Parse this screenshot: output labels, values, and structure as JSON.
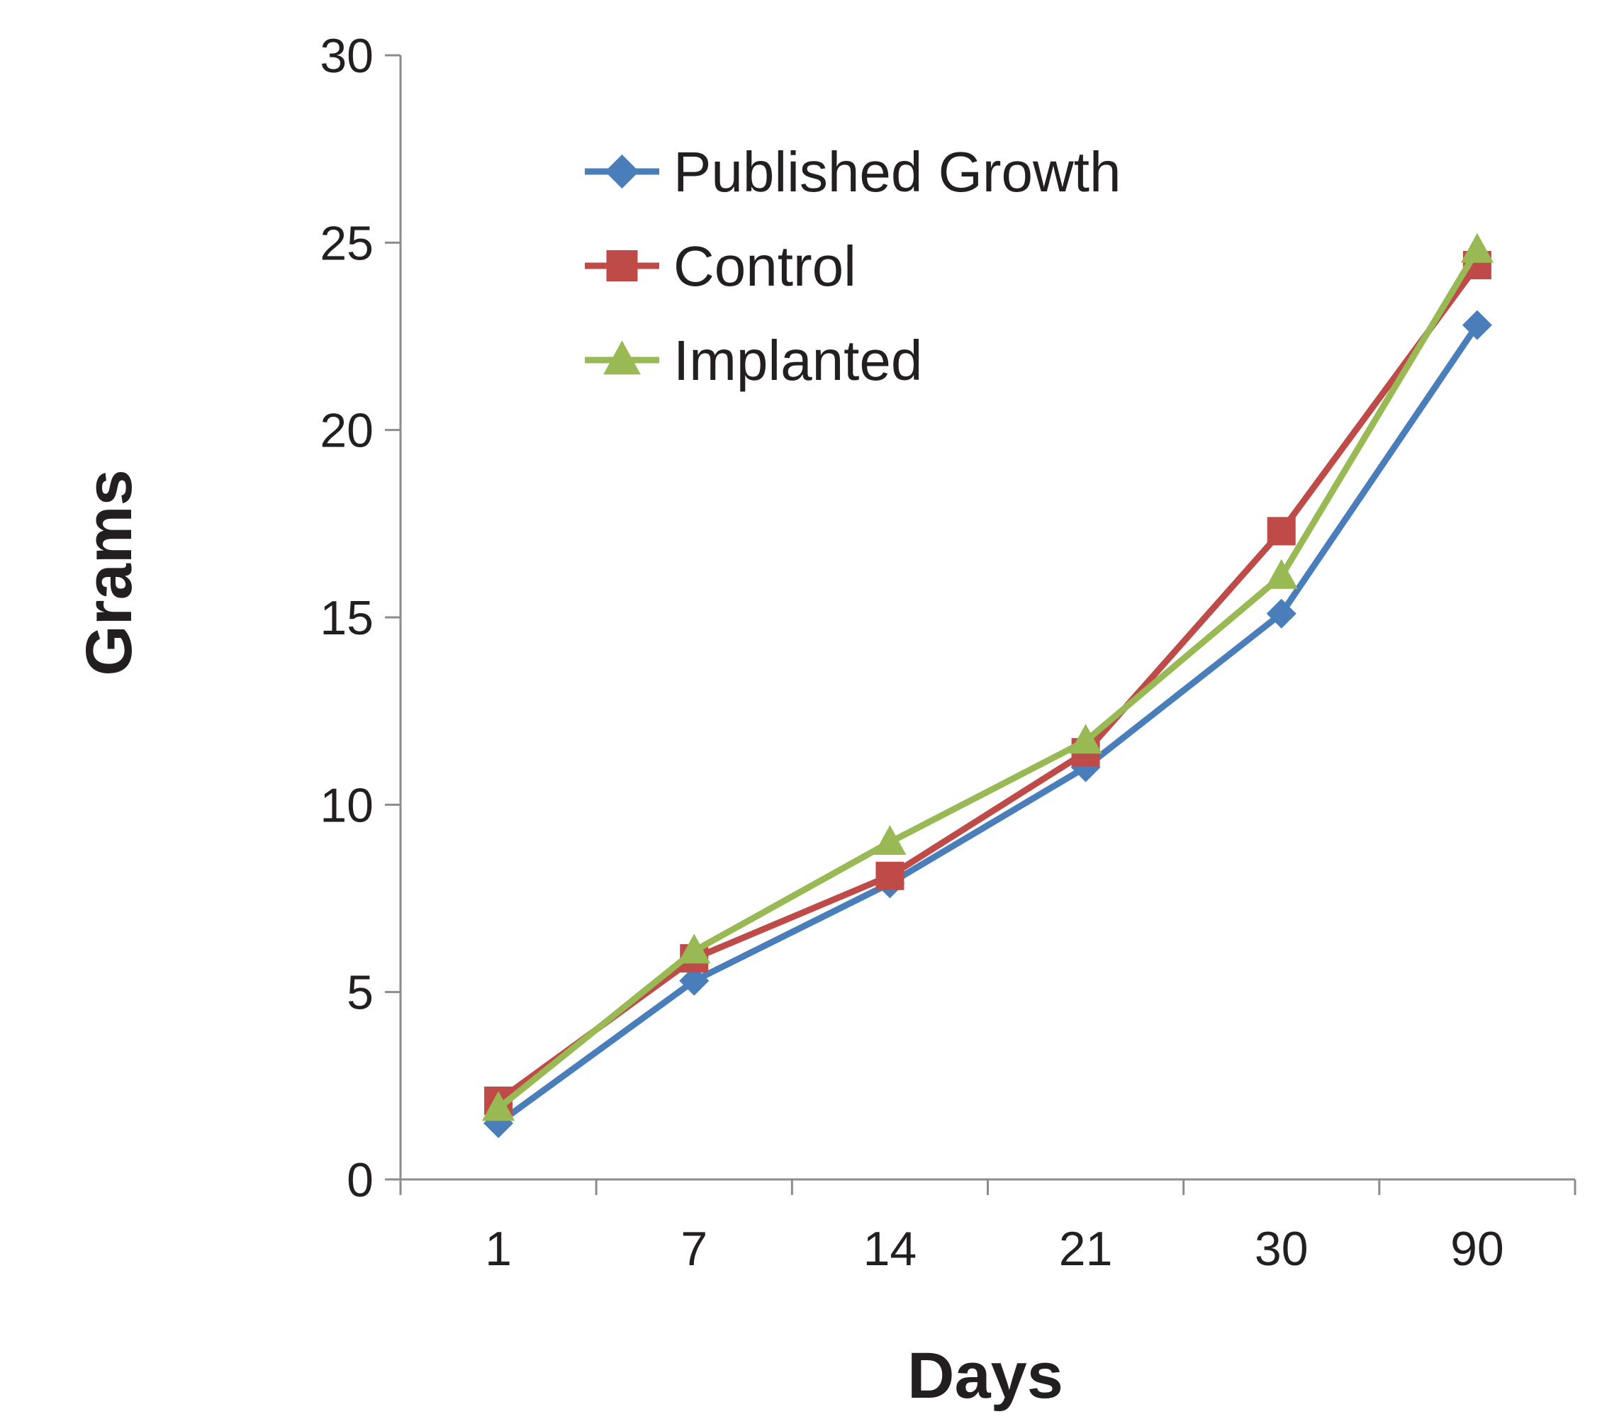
{
  "chart_data": {
    "type": "line",
    "title": "",
    "xlabel": "Days",
    "ylabel": "Grams",
    "categories": [
      "1",
      "7",
      "14",
      "21",
      "30",
      "90"
    ],
    "ylim": [
      0,
      30
    ],
    "yticks": [
      "0",
      "5",
      "10",
      "15",
      "20",
      "25",
      "30"
    ],
    "grid": false,
    "legend_position": "top-left",
    "series": [
      {
        "name": "Published Growth",
        "color": "#4a7ebb",
        "marker": "diamond",
        "values": [
          1.5,
          5.3,
          7.9,
          11.0,
          15.1,
          22.8
        ]
      },
      {
        "name": "Control",
        "color": "#be4b48",
        "marker": "square",
        "values": [
          2.1,
          5.9,
          8.1,
          11.4,
          17.3,
          24.4
        ]
      },
      {
        "name": "Implanted",
        "color": "#98b954",
        "marker": "triangle",
        "values": [
          1.9,
          6.1,
          9.0,
          11.7,
          16.1,
          24.8
        ]
      }
    ]
  }
}
